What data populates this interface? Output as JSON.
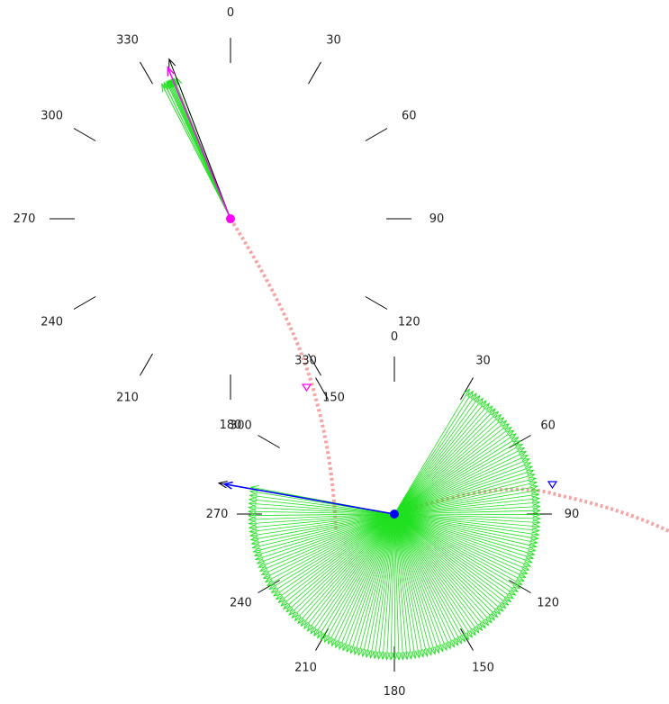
{
  "colors": {
    "background": "#ffffff",
    "tick": "#000000",
    "label": "#222222",
    "path": "#f6a3a3",
    "fan": "#20e020",
    "agent_a": "#ff00ff",
    "agent_b": "#0000ff",
    "heading": "#000000"
  },
  "dial_labels": [
    "0",
    "30",
    "60",
    "90",
    "120",
    "150",
    "180",
    "210",
    "240",
    "270",
    "300",
    "330"
  ],
  "dial_a": {
    "angles": [
      0,
      30,
      60,
      90,
      120,
      150,
      180,
      210,
      240,
      270,
      300,
      330
    ],
    "fan_angles": [
      333,
      334,
      335,
      335.5,
      336,
      336.5,
      337,
      337.5,
      338,
      339
    ],
    "agent_heading": 337.5,
    "heading": 339
  },
  "dial_b": {
    "angles": [
      0,
      30,
      60,
      90,
      120,
      150,
      180,
      210,
      240,
      270,
      300,
      330
    ],
    "fan_range": [
      31,
      282
    ],
    "agent_heading": 280,
    "heading": 280
  }
}
